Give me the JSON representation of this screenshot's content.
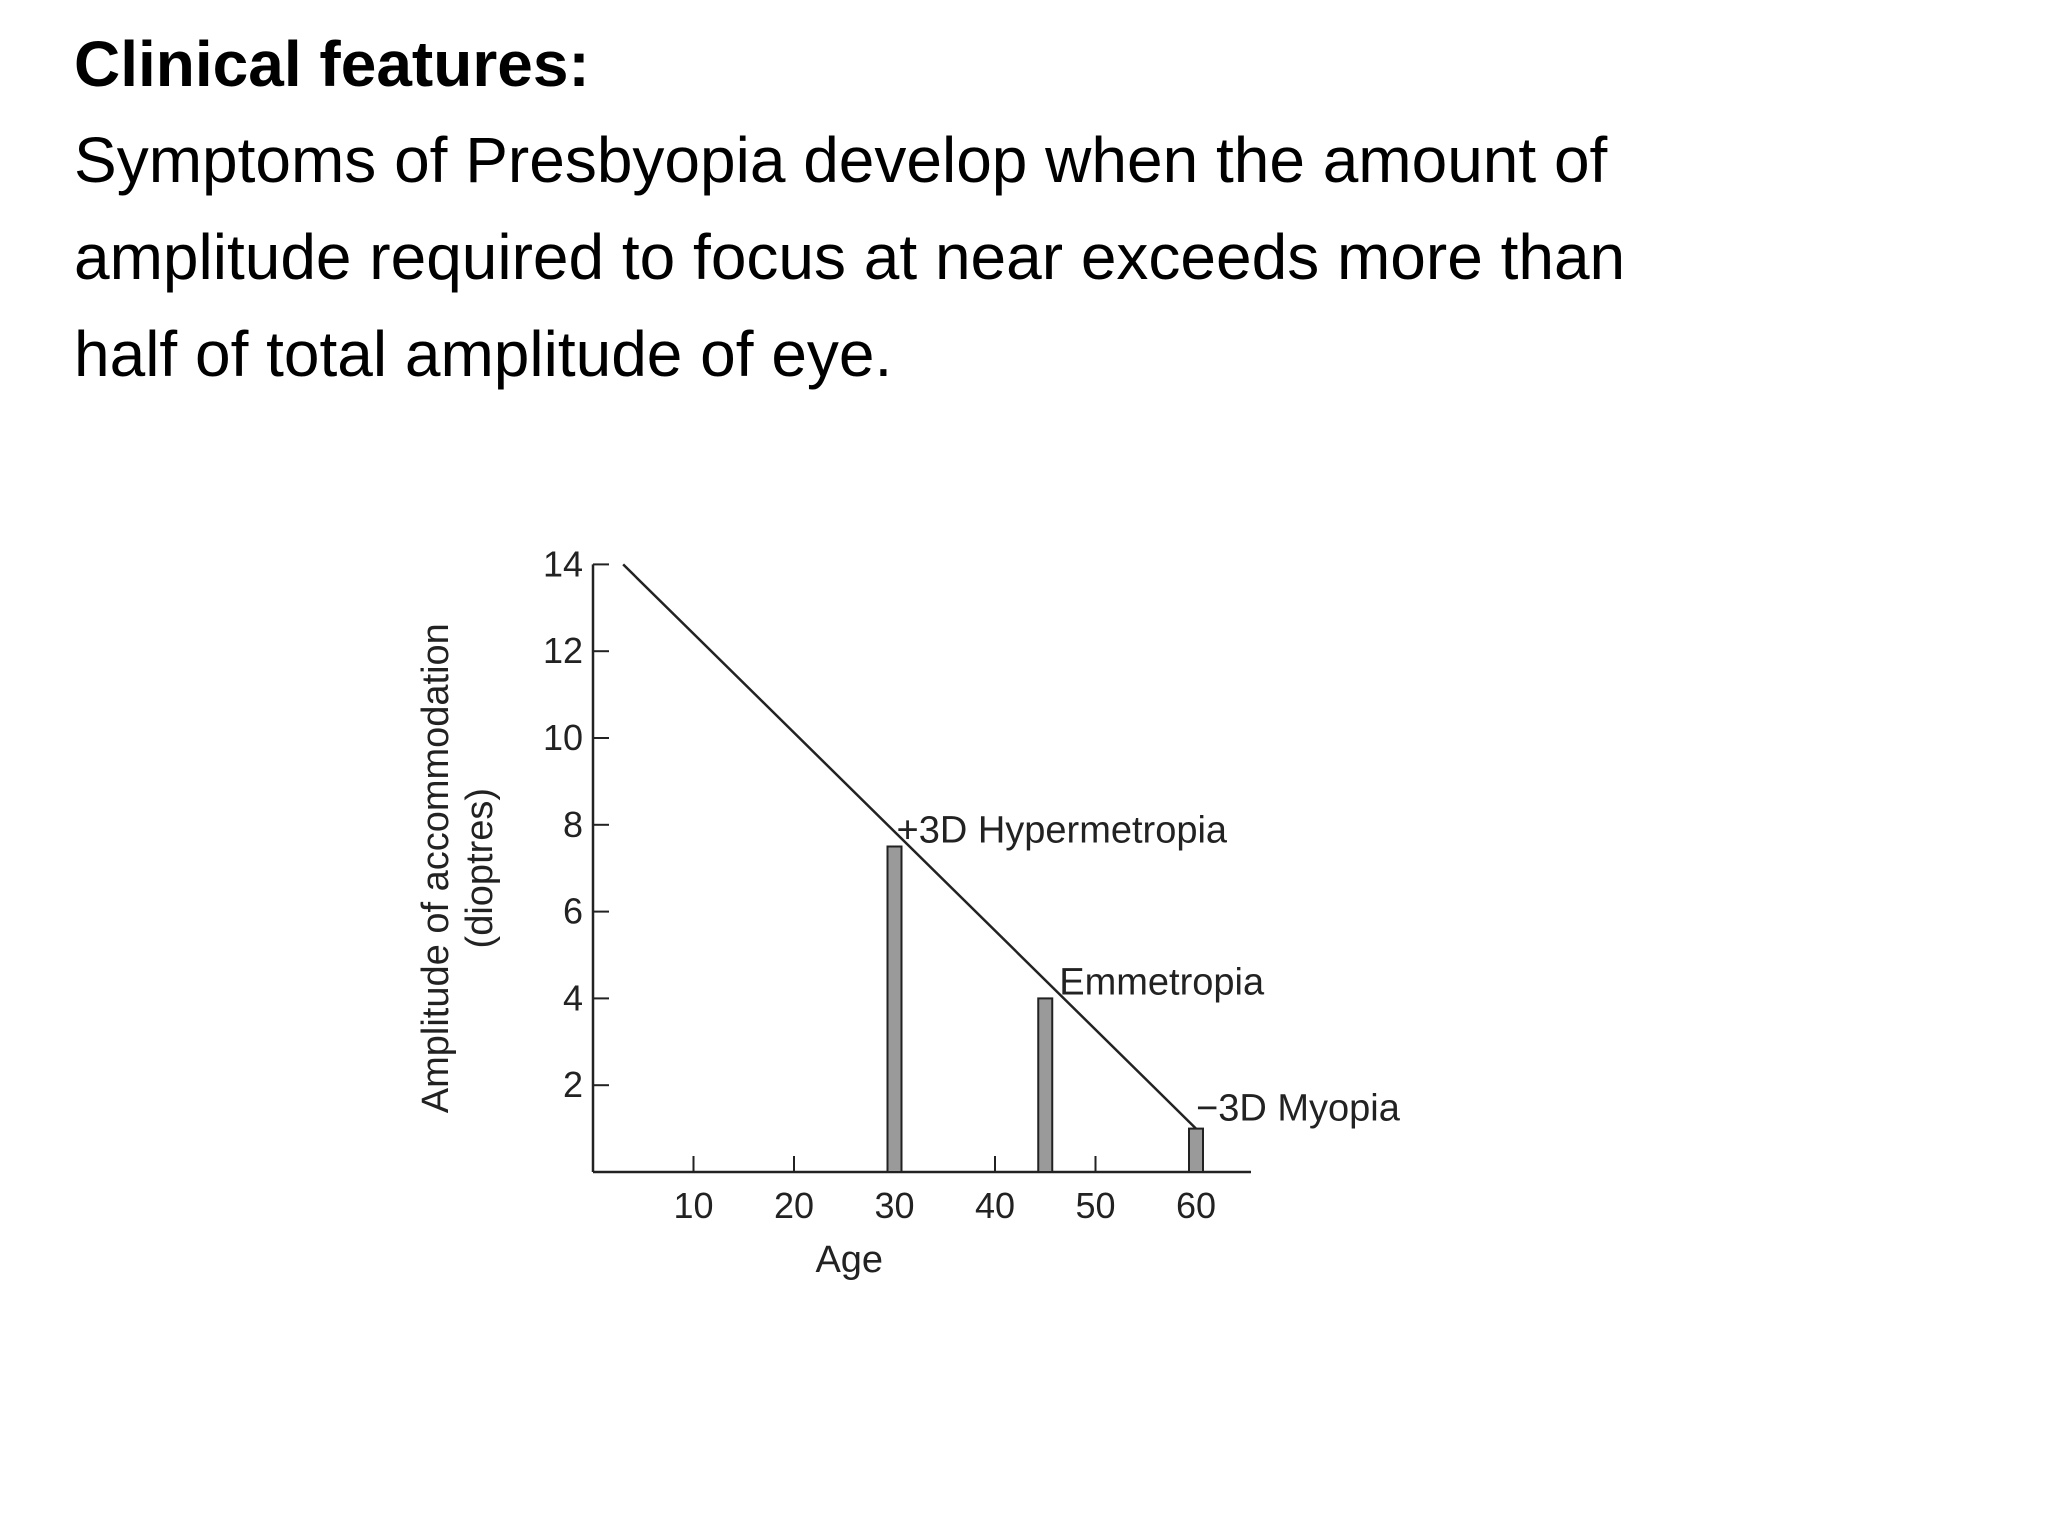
{
  "slide": {
    "heading": "Clinical features:",
    "body_lines": [
      "Symptoms of Presbyopia develop when the amount of",
      "amplitude required to focus at near exceeds more than",
      "half of total amplitude of eye."
    ]
  },
  "chart_data": {
    "type": "line",
    "title": "",
    "xlabel": "Age",
    "ylabel": "Amplitude of accommodation",
    "ylabel_unit": "(dioptres)",
    "xlim": [
      0,
      60
    ],
    "ylim": [
      0,
      14
    ],
    "xticks": [
      10,
      20,
      30,
      40,
      50,
      60
    ],
    "yticks": [
      2,
      4,
      6,
      8,
      10,
      12,
      14
    ],
    "grid": false,
    "series": [
      {
        "x": [
          3,
          60
        ],
        "y": [
          14,
          1
        ]
      }
    ],
    "bars": [
      {
        "x": 30,
        "value": 7.5,
        "label": "+3D Hypermetropia"
      },
      {
        "x": 45,
        "value": 4,
        "label": "Emmetropia"
      },
      {
        "x": 60,
        "value": 1,
        "label": "−3D Myopia"
      }
    ],
    "colors": {
      "line": "#222222",
      "bar_fill": "#9a9a9a",
      "bar_stroke": "#222222"
    }
  }
}
